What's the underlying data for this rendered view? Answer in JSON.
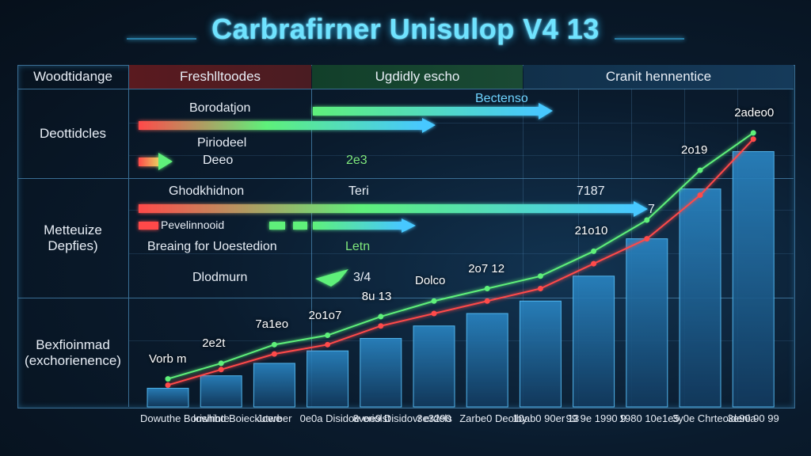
{
  "title": "Carbrafirner Unisulop V4 13",
  "header": {
    "col0": "Woodtidange",
    "col1": "Freshlltoodes",
    "col2": "Ugdidly escho",
    "col3": "Cranit hennentice"
  },
  "rows": {
    "r1": "Deottidcles",
    "r2": "Metteuize Depfies)",
    "r3": "Bexfioinmad (exchorienence)"
  },
  "annotations": {
    "a1": "Borodatjon",
    "a2": "Piriodeel",
    "a3": "Deeo",
    "a4": "2e3",
    "a5": "Bectenso",
    "a6": "Ghodkhidnon",
    "a7": "Teri",
    "a8": "Pevelinnooid",
    "a9": "Breaing for Uoestedion",
    "a10": "Letn",
    "a11": "Dlodmurn",
    "a12": "3/4",
    "a13": "7187",
    "a14": "7"
  },
  "colors": {
    "red": "#ff4a4a",
    "green": "#5ef07a",
    "cyan": "#47c8ff",
    "bar": "#1c6aa0"
  },
  "chart_data": {
    "type": "bar",
    "title": "Carbrafirner Unisulop V4 13",
    "categories": [
      "Dowuthe Borishinte",
      "lowhbd Boieckutwe",
      "Joerber",
      "0e0a Disidoe eriolst",
      "8voe9 Disidovr erdels",
      "3e3290",
      "Zarbe0 Deolby",
      "10ab0 90er 13",
      "99 9e 1990 9",
      "1980 10e1e5",
      "3y0e Chrteoidenia",
      "3e90 90 99"
    ],
    "values": [
      3,
      5,
      7,
      9,
      11,
      13,
      15,
      17,
      21,
      27,
      35,
      41
    ],
    "data_labels": [
      "Vorb m",
      "2e2t",
      "7a1eo",
      "2o1o7",
      "8u 13",
      "Dolco",
      "2o7 12",
      "",
      "21o10",
      "",
      "2o19",
      "2adeo0"
    ],
    "series": [
      {
        "name": "",
        "color": "#5ef07a",
        "values": [
          4.5,
          7,
          10,
          11.5,
          14.5,
          17,
          19,
          21,
          25,
          30,
          38,
          44
        ]
      },
      {
        "name": "",
        "color": "#ff4a4a",
        "values": [
          3.5,
          6,
          8.5,
          10,
          13,
          15,
          17,
          19,
          23,
          27,
          34,
          43
        ]
      }
    ],
    "ylim": [
      0,
      45
    ],
    "xlabel": "",
    "ylabel": ""
  }
}
